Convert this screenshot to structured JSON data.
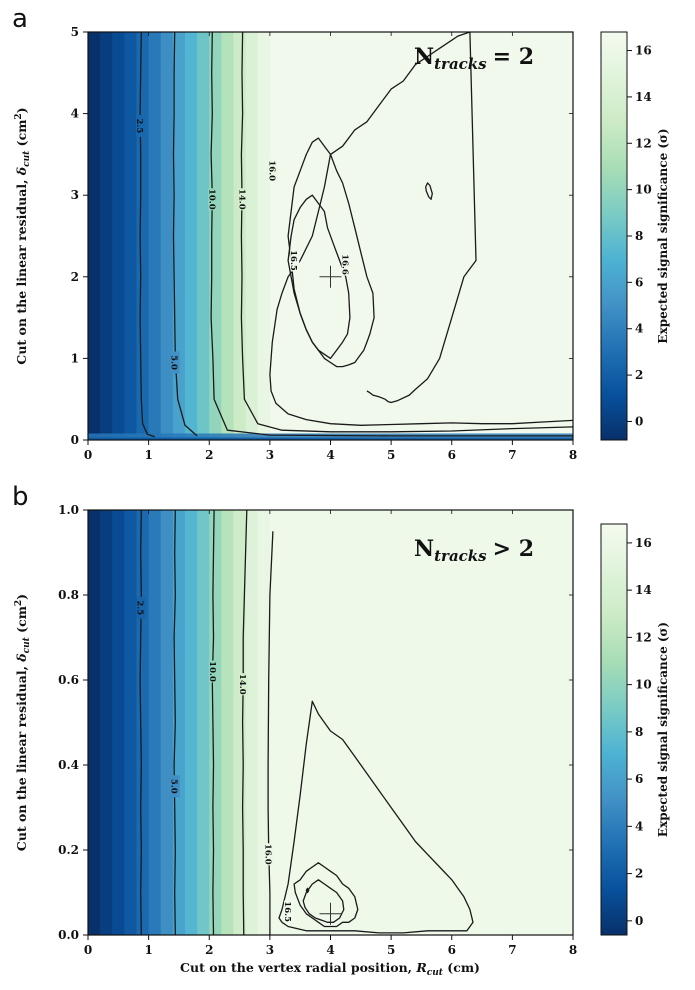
{
  "chart_data": [
    {
      "panel": "a",
      "type": "heatmap",
      "annotation": {
        "base": "N",
        "subscript": "tracks",
        "relation": "= 2"
      },
      "xlabel": {
        "text": "",
        "var": "",
        "sub": "",
        "unit": ""
      },
      "ylabel": {
        "text": "Cut on the linear residual, ",
        "var": "δ",
        "sub": "cut",
        "unit": " (cm",
        "sup": "2",
        "close": ")"
      },
      "colorbar_label": "Expected signal significance (σ)",
      "xlim": [
        0,
        8
      ],
      "ylim": [
        0,
        5
      ],
      "xticks": [
        "0",
        "1",
        "2",
        "3",
        "4",
        "5",
        "6",
        "7",
        "8"
      ],
      "yticks": [
        "0",
        "1",
        "2",
        "3",
        "4",
        "5"
      ],
      "colorbar_range": [
        -0.8,
        16.8
      ],
      "colorbar_ticks": [
        "0",
        "2",
        "4",
        "6",
        "8",
        "10",
        "12",
        "14",
        "16"
      ],
      "colormap": [
        "#08306b",
        "#08519c",
        "#2171b5",
        "#4292c6",
        "#4eb3d3",
        "#7bccc4",
        "#a8ddb5",
        "#ccebc5",
        "#e0f3db",
        "#f4fbef"
      ],
      "columns": {
        "x_edges": [
          0,
          0.2,
          0.4,
          0.6,
          0.8,
          1.0,
          1.2,
          1.4,
          1.6,
          1.8,
          2.0,
          2.2,
          2.4,
          2.6,
          2.8,
          3.0,
          8.0
        ],
        "significance": [
          -0.8,
          0.0,
          0.8,
          1.6,
          2.6,
          3.6,
          4.8,
          6.0,
          7.2,
          8.4,
          10.0,
          11.6,
          13.0,
          14.4,
          15.6,
          16.4
        ]
      },
      "contours": [
        {
          "level": "2.5",
          "label": "2.5",
          "x": [
            0.88,
            0.87,
            0.86,
            0.87,
            0.87,
            0.86,
            0.87,
            0.86,
            0.87,
            0.88,
            0.9,
            0.98,
            1.1
          ],
          "y": [
            5,
            4.5,
            4,
            3.5,
            3,
            2.5,
            2,
            1.5,
            1,
            0.5,
            0.2,
            0.07,
            0.04
          ],
          "label_at": [
            0.86,
            3.85
          ]
        },
        {
          "level": "5.0",
          "label": "5.0",
          "x": [
            1.43,
            1.42,
            1.42,
            1.41,
            1.42,
            1.41,
            1.42,
            1.43,
            1.44,
            1.48,
            1.6,
            1.8
          ],
          "y": [
            5,
            4.5,
            4,
            3.5,
            3,
            2.5,
            2,
            1.5,
            1.0,
            0.5,
            0.18,
            0.05
          ],
          "label_at": [
            1.43,
            0.95
          ]
        },
        {
          "level": "10.0",
          "label": "10.0",
          "x": [
            2.05,
            2.04,
            2.05,
            2.03,
            2.05,
            2.04,
            2.04,
            2.03,
            2.06,
            2.08,
            2.3,
            3.0,
            5.0,
            8.0
          ],
          "y": [
            5,
            4.5,
            4,
            3.5,
            3,
            2.5,
            2,
            1.5,
            1,
            0.5,
            0.12,
            0.06,
            0.05,
            0.05
          ],
          "label_at": [
            2.05,
            2.95
          ]
        },
        {
          "level": "14.0",
          "label": "14.0",
          "x": [
            2.55,
            2.54,
            2.55,
            2.53,
            2.54,
            2.53,
            2.54,
            2.53,
            2.55,
            2.58,
            2.8,
            3.2,
            4,
            5,
            6,
            7,
            8.0
          ],
          "y": [
            5,
            4.5,
            4,
            3.5,
            3,
            2.5,
            2,
            1.5,
            1,
            0.5,
            0.2,
            0.12,
            0.1,
            0.1,
            0.11,
            0.14,
            0.16
          ],
          "label_at": [
            2.55,
            2.95
          ]
        },
        {
          "level": "16.0",
          "label": "16.0",
          "x": [
            8.0,
            7.5,
            7,
            6.5,
            6,
            5.5,
            5,
            4.5,
            4,
            3.6,
            3.3,
            3.1,
            3.02,
            3.0,
            3.02,
            3.04,
            3.08,
            3.12,
            3.2,
            3.3,
            3.5,
            3.7,
            3.8,
            3.9,
            4.0,
            4.2,
            4.4,
            4.6,
            4.8,
            5.0,
            5.2,
            5.4,
            5.6,
            5.8,
            6.0,
            6.1,
            6.3,
            6.4,
            6.2,
            6.0,
            5.8,
            5.6,
            5.4,
            5.3,
            5.1,
            5.0,
            4.95,
            4.9,
            4.8,
            4.7,
            4.65,
            4.6
          ],
          "y": [
            0.24,
            0.22,
            0.2,
            0.2,
            0.21,
            0.2,
            0.19,
            0.18,
            0.2,
            0.25,
            0.32,
            0.45,
            0.6,
            0.8,
            1.0,
            1.2,
            1.4,
            1.6,
            1.8,
            2.0,
            2.2,
            2.5,
            2.8,
            3.1,
            3.5,
            3.6,
            3.8,
            3.9,
            4.1,
            4.3,
            4.4,
            4.6,
            4.7,
            4.8,
            4.9,
            4.95,
            5.0,
            2.2,
            2.0,
            1.5,
            1.0,
            0.75,
            0.62,
            0.55,
            0.48,
            0.46,
            0.47,
            0.5,
            0.53,
            0.55,
            0.58,
            0.6
          ],
          "closed": false,
          "label_at": [
            3.04,
            3.3
          ]
        },
        {
          "level": "16.5",
          "label": "16.5",
          "x": [
            3.3,
            3.35,
            3.4,
            3.5,
            3.6,
            3.7,
            3.8,
            3.9,
            4.0,
            4.1,
            4.2,
            4.3,
            4.4,
            4.5,
            4.6,
            4.7,
            4.72,
            4.65,
            4.6,
            4.55,
            4.5,
            4.45,
            4.4,
            4.3,
            4.2,
            4.1,
            4.0,
            3.9,
            3.8,
            3.7,
            3.6,
            3.5,
            3.4,
            3.35
          ],
          "y": [
            2.5,
            2.8,
            3.1,
            3.3,
            3.5,
            3.65,
            3.7,
            3.6,
            3.5,
            3.3,
            3.15,
            2.9,
            2.6,
            2.3,
            2.0,
            1.8,
            1.5,
            1.3,
            1.2,
            1.1,
            1.05,
            1.0,
            0.95,
            0.92,
            0.9,
            0.9,
            0.95,
            1.0,
            1.1,
            1.2,
            1.35,
            1.55,
            1.85,
            2.2
          ],
          "closed": true,
          "label_at": [
            3.4,
            2.2
          ]
        },
        {
          "level": "16.6",
          "label": "16.6",
          "x": [
            3.3,
            3.35,
            3.4,
            3.5,
            3.6,
            3.7,
            3.8,
            3.9,
            3.95,
            4.05,
            4.15,
            4.25,
            4.3,
            4.32,
            4.28,
            4.2,
            4.1,
            4.0,
            3.9,
            3.8,
            3.7,
            3.6,
            3.5,
            3.4,
            3.35
          ],
          "y": [
            2.2,
            2.5,
            2.7,
            2.85,
            2.95,
            3.0,
            2.9,
            2.8,
            2.6,
            2.4,
            2.2,
            2.0,
            1.8,
            1.5,
            1.3,
            1.2,
            1.1,
            1.0,
            1.05,
            1.1,
            1.2,
            1.35,
            1.55,
            1.8,
            2.0
          ],
          "closed": true,
          "label_at": [
            4.25,
            2.15
          ]
        },
        {
          "level": "16.6",
          "label": "",
          "x": [
            5.58,
            5.62,
            5.66,
            5.68,
            5.64,
            5.6,
            5.57
          ],
          "y": [
            3.05,
            2.98,
            2.95,
            3.02,
            3.12,
            3.15,
            3.1
          ],
          "closed": true
        }
      ],
      "optimum_marker": {
        "x": 4.0,
        "y": 2.0
      }
    },
    {
      "panel": "b",
      "type": "heatmap",
      "annotation": {
        "base": "N",
        "subscript": "tracks",
        "relation": "> 2"
      },
      "xlabel": {
        "text": "Cut on the vertex radial position, ",
        "var": "R",
        "sub": "cut",
        "unit": " (cm)"
      },
      "ylabel": {
        "text": "Cut on the linear residual, ",
        "var": "δ",
        "sub": "cut",
        "unit": " (cm",
        "sup": "2",
        "close": ")"
      },
      "colorbar_label": "Expected signal significance (σ)",
      "xlim": [
        0,
        8
      ],
      "ylim": [
        0,
        1
      ],
      "xticks": [
        "0",
        "1",
        "2",
        "3",
        "4",
        "5",
        "6",
        "7",
        "8"
      ],
      "yticks": [
        "0.0",
        "0.2",
        "0.4",
        "0.6",
        "0.8",
        "1.0"
      ],
      "colorbar_range": [
        -0.6,
        16.8
      ],
      "colorbar_ticks": [
        "0",
        "2",
        "4",
        "6",
        "8",
        "10",
        "12",
        "14",
        "16"
      ],
      "colormap": [
        "#08306b",
        "#08519c",
        "#2171b5",
        "#4292c6",
        "#4eb3d3",
        "#7bccc4",
        "#a8ddb5",
        "#ccebc5",
        "#e0f3db",
        "#f4fbef"
      ],
      "columns": {
        "x_edges": [
          0,
          0.2,
          0.4,
          0.6,
          0.8,
          1.0,
          1.2,
          1.4,
          1.6,
          1.8,
          2.0,
          2.2,
          2.4,
          2.6,
          2.8,
          3.0,
          8.0
        ],
        "significance": [
          -0.6,
          0.2,
          1.0,
          1.8,
          2.8,
          3.8,
          5.0,
          6.2,
          7.4,
          8.6,
          10.2,
          11.8,
          13.2,
          14.6,
          15.6,
          16.2
        ]
      },
      "contours": [
        {
          "level": "2.5",
          "label": "2.5",
          "x": [
            0.88,
            0.87,
            0.88,
            0.87,
            0.86,
            0.87,
            0.88,
            0.87,
            0.88,
            0.87,
            0.88
          ],
          "y": [
            1.0,
            0.9,
            0.8,
            0.7,
            0.6,
            0.5,
            0.4,
            0.3,
            0.2,
            0.1,
            0.0
          ],
          "label_at": [
            0.87,
            0.77
          ]
        },
        {
          "level": "5.0",
          "label": "5.0",
          "x": [
            1.44,
            1.43,
            1.44,
            1.42,
            1.43,
            1.44,
            1.42,
            1.43,
            1.44,
            1.43,
            1.44
          ],
          "y": [
            1.0,
            0.9,
            0.8,
            0.7,
            0.6,
            0.5,
            0.4,
            0.3,
            0.2,
            0.1,
            0.0
          ],
          "label_at": [
            1.43,
            0.35
          ]
        },
        {
          "level": "10.0",
          "label": "10.0",
          "x": [
            2.08,
            2.07,
            2.06,
            2.07,
            2.05,
            2.06,
            2.07,
            2.06,
            2.07,
            2.06,
            2.07
          ],
          "y": [
            1.0,
            0.9,
            0.8,
            0.7,
            0.6,
            0.5,
            0.4,
            0.3,
            0.2,
            0.1,
            0.0
          ],
          "label_at": [
            2.06,
            0.62
          ]
        },
        {
          "level": "14.0",
          "label": "14.0",
          "x": [
            2.62,
            2.6,
            2.58,
            2.56,
            2.56,
            2.55,
            2.56,
            2.55,
            2.56,
            2.56,
            2.57
          ],
          "y": [
            1.0,
            0.9,
            0.8,
            0.7,
            0.6,
            0.5,
            0.4,
            0.3,
            0.2,
            0.1,
            0.0
          ],
          "label_at": [
            2.56,
            0.59
          ]
        },
        {
          "level": "16.0",
          "label": "16.0",
          "x": [
            3.05,
            3.0,
            2.98,
            2.97,
            2.97,
            2.98,
            3.0,
            3.0
          ],
          "y": [
            0.95,
            0.8,
            0.6,
            0.4,
            0.3,
            0.2,
            0.1,
            0.0
          ],
          "label_at": [
            2.98,
            0.19
          ]
        },
        {
          "level": "16.0",
          "label": "",
          "x": [
            3.2,
            3.3,
            3.4,
            3.5,
            3.6,
            3.7,
            3.8,
            3.9,
            4.0,
            4.2,
            4.4,
            4.6,
            4.8,
            5.0,
            5.2,
            5.4,
            5.6,
            5.8,
            6.0,
            6.2,
            6.3,
            6.35,
            6.25,
            6.0,
            5.6,
            5.2,
            4.8,
            4.4,
            4.0,
            3.6,
            3.3,
            3.2,
            3.15,
            3.2
          ],
          "y": [
            0.06,
            0.12,
            0.22,
            0.33,
            0.45,
            0.55,
            0.52,
            0.5,
            0.48,
            0.46,
            0.42,
            0.38,
            0.34,
            0.3,
            0.26,
            0.22,
            0.19,
            0.16,
            0.13,
            0.09,
            0.06,
            0.03,
            0.01,
            0.01,
            0.01,
            0.005,
            0.005,
            0.01,
            0.01,
            0.01,
            0.02,
            0.03,
            0.04,
            0.06
          ],
          "closed": true
        },
        {
          "level": "16.5",
          "label": "16.5",
          "x": [
            3.4,
            3.5,
            3.6,
            3.7,
            3.8,
            3.9,
            4.0,
            4.1,
            4.2,
            4.3,
            4.4,
            4.45,
            4.4,
            4.3,
            4.2,
            4.1,
            4.0,
            3.9,
            3.8,
            3.7,
            3.6,
            3.5,
            3.42
          ],
          "y": [
            0.12,
            0.13,
            0.15,
            0.16,
            0.17,
            0.16,
            0.15,
            0.14,
            0.12,
            0.11,
            0.09,
            0.06,
            0.04,
            0.03,
            0.03,
            0.02,
            0.02,
            0.02,
            0.03,
            0.04,
            0.05,
            0.07,
            0.1
          ],
          "closed": true,
          "label_at": [
            3.3,
            0.055
          ]
        },
        {
          "level": "16.6",
          "label": "",
          "x": [
            3.55,
            3.6,
            3.7,
            3.8,
            3.9,
            4.0,
            4.1,
            4.2,
            4.22,
            4.15,
            4.05,
            3.95,
            3.85,
            3.75,
            3.65,
            3.58
          ],
          "y": [
            0.08,
            0.1,
            0.12,
            0.13,
            0.12,
            0.11,
            0.1,
            0.08,
            0.06,
            0.04,
            0.03,
            0.03,
            0.035,
            0.04,
            0.05,
            0.065
          ],
          "closed": true
        },
        {
          "level": "16.6",
          "label": "",
          "x": [
            3.6,
            3.62,
            3.64,
            3.62,
            3.6
          ],
          "y": [
            0.105,
            0.11,
            0.105,
            0.1,
            0.105
          ],
          "closed": true
        }
      ],
      "optimum_marker": {
        "x": 4.0,
        "y": 0.05
      }
    }
  ]
}
